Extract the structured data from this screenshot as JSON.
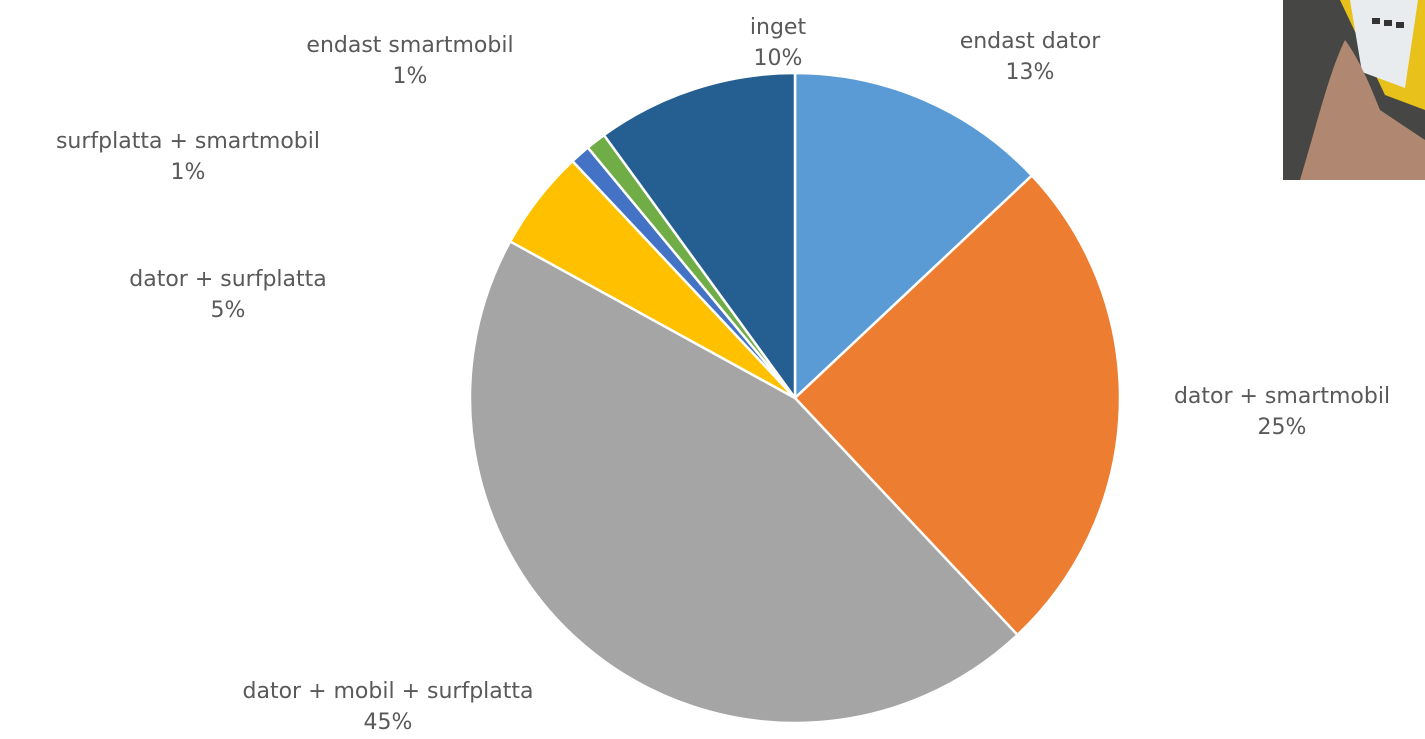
{
  "chart_data": {
    "type": "pie",
    "categories": [
      "endast dator",
      "dator + smartmobil",
      "dator + mobil + surfplatta",
      "dator + surfplatta",
      "surfplatta + smartmobil",
      "endast smartmobil",
      "inget"
    ],
    "values": [
      13,
      25,
      45,
      5,
      1,
      1,
      10
    ],
    "value_labels": [
      "13%",
      "25%",
      "45%",
      "5%",
      "1%",
      "1%",
      "10%"
    ],
    "colors": [
      "#5b9bd5",
      "#ed7d31",
      "#a5a5a5",
      "#ffc000",
      "#4472c4",
      "#70ad47",
      "#255e91"
    ]
  }
}
